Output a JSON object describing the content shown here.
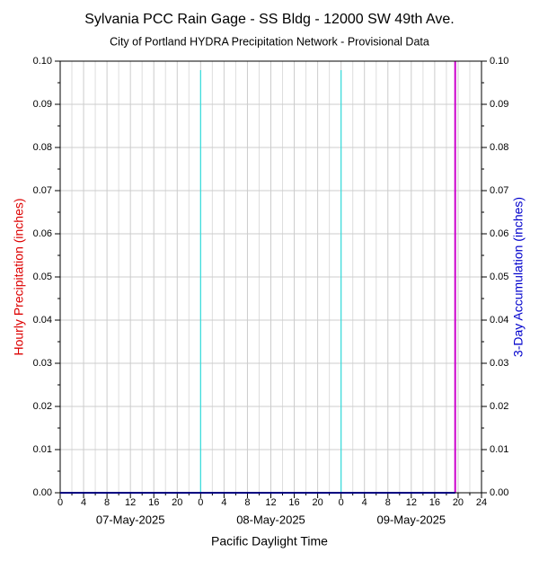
{
  "chart_data": {
    "type": "line",
    "title": "Sylvania PCC Rain Gage - SS Bldg - 12000 SW 49th Ave.",
    "subtitle": "City of Portland HYDRA Precipitation Network - Provisional Data",
    "y_label": "Hourly Precipitation (inches)",
    "y2_label": "3-Day Accumulation (inches)",
    "x_label": "Pacific Daylight Time",
    "xlim": [
      0,
      72
    ],
    "xticks": [
      0,
      4,
      8,
      12,
      16,
      20,
      {
        "value": 24,
        "label": "0"
      },
      {
        "value": 28,
        "label": "4"
      },
      {
        "value": 32,
        "label": "8"
      },
      {
        "value": 36,
        "label": "12"
      },
      {
        "value": 40,
        "label": "16"
      },
      {
        "value": 44,
        "label": "20"
      },
      {
        "value": 48,
        "label": "0"
      },
      {
        "value": 52,
        "label": "4"
      },
      {
        "value": 56,
        "label": "8"
      },
      {
        "value": 60,
        "label": "12"
      },
      {
        "value": 64,
        "label": "16"
      },
      {
        "value": 68,
        "label": "20"
      },
      {
        "value": 72,
        "label": "24"
      }
    ],
    "date_labels": [
      {
        "value": 12,
        "label": "07-May-2025"
      },
      {
        "value": 36,
        "label": "08-May-2025"
      },
      {
        "value": 60,
        "label": "09-May-2025"
      }
    ],
    "ylim": [
      0,
      0.1
    ],
    "yticks": [
      {
        "value": 0,
        "label": "0.00"
      },
      0.01,
      0.02,
      0.03,
      0.04,
      0.05,
      0.06,
      0.07,
      0.08,
      0.09,
      {
        "value": 0.1,
        "label": "0.10"
      }
    ],
    "y2lim": [
      0,
      0.1
    ],
    "y2ticks": [
      {
        "value": 0,
        "label": "0.00"
      },
      0.01,
      0.02,
      0.03,
      0.04,
      0.05,
      0.06,
      0.07,
      0.08,
      0.09,
      {
        "value": 0.1,
        "label": "0.10"
      }
    ],
    "grid": true,
    "day_lines": {
      "color": "#33dddd",
      "x": [
        24,
        48
      ]
    },
    "now_line": {
      "color": "#cc00cc",
      "x": 67.5
    },
    "series": [
      {
        "color": "#000080",
        "axis": "y2",
        "x": [
          0,
          67.5
        ],
        "values": [
          0,
          0
        ]
      }
    ],
    "y_label_color": "#dd0000",
    "y2_label_color": "#0000cc"
  }
}
